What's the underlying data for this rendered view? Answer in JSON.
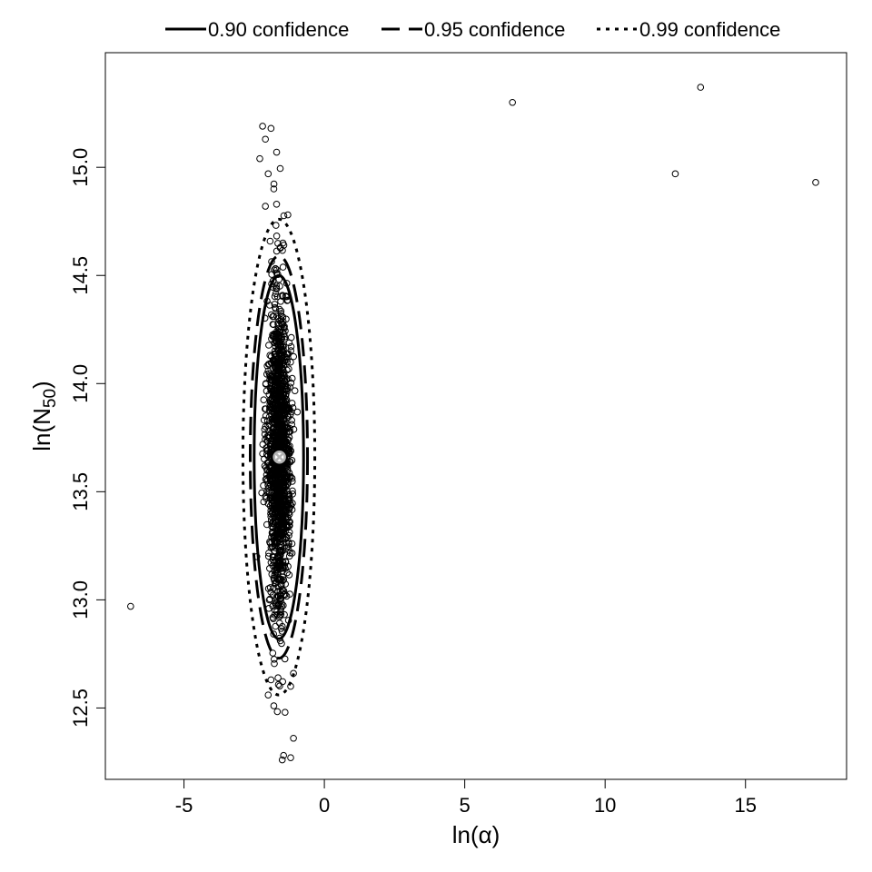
{
  "chart_data": {
    "type": "scatter",
    "xlabel": "ln(α)",
    "ylabel": {
      "prefix": "ln(N",
      "sub": "50",
      "suffix": ")"
    },
    "xlim": [
      -7.8,
      18.6
    ],
    "ylim": [
      12.17,
      15.53
    ],
    "xticks": [
      -5,
      0,
      5,
      10,
      15
    ],
    "xtick_labels": [
      "-5",
      "0",
      "5",
      "10",
      "15"
    ],
    "yticks": [
      12.5,
      13.0,
      13.5,
      14.0,
      14.5,
      15.0
    ],
    "ytick_labels": [
      "12.5",
      "13.0",
      "13.5",
      "14.0",
      "14.5",
      "15.0"
    ],
    "grid": false,
    "legend_position": "top",
    "legend": [
      {
        "label": "0.90 confidence",
        "style": "solid"
      },
      {
        "label": "0.95 confidence",
        "style": "dashed"
      },
      {
        "label": "0.99 confidence",
        "style": "dotted"
      }
    ],
    "estimate": {
      "x": -1.6,
      "y": 13.66,
      "color": "#b3b3b3"
    },
    "ellipses": [
      {
        "confidence": 0.9,
        "center": [
          -1.62,
          13.66
        ],
        "half_width_x": 0.88,
        "half_height_y": 0.84,
        "style": "solid"
      },
      {
        "confidence": 0.95,
        "center": [
          -1.62,
          13.66
        ],
        "half_width_x": 1.02,
        "half_height_y": 0.93,
        "style": "dashed"
      },
      {
        "confidence": 0.99,
        "center": [
          -1.62,
          13.66
        ],
        "half_width_x": 1.28,
        "half_height_y": 1.1,
        "style": "dotted"
      }
    ],
    "bootstrap_cloud": {
      "center_x": -1.62,
      "center_y": 13.66,
      "sd_x": 0.22,
      "sd_y": 0.36,
      "n": 1500
    },
    "points": [
      {
        "x": -6.9,
        "y": 12.97
      },
      {
        "x": 6.7,
        "y": 15.3
      },
      {
        "x": 12.5,
        "y": 14.97
      },
      {
        "x": 13.4,
        "y": 15.37
      },
      {
        "x": 17.5,
        "y": 14.93
      },
      {
        "x": -1.1,
        "y": 12.36
      },
      {
        "x": -1.2,
        "y": 12.27
      },
      {
        "x": -1.5,
        "y": 12.26
      },
      {
        "x": -1.4,
        "y": 12.48
      },
      {
        "x": -1.8,
        "y": 12.51
      },
      {
        "x": -2.2,
        "y": 15.19
      },
      {
        "x": -1.9,
        "y": 15.18
      },
      {
        "x": -2.1,
        "y": 15.13
      },
      {
        "x": -2.3,
        "y": 15.04
      },
      {
        "x": -1.7,
        "y": 15.07
      },
      {
        "x": -2.0,
        "y": 14.97
      },
      {
        "x": -1.8,
        "y": 14.9
      },
      {
        "x": -2.1,
        "y": 14.82
      },
      {
        "x": -1.3,
        "y": 14.78
      },
      {
        "x": -1.9,
        "y": 12.63
      },
      {
        "x": -1.2,
        "y": 12.6
      },
      {
        "x": -2.0,
        "y": 12.56
      },
      {
        "x": -1.1,
        "y": 12.66
      }
    ]
  }
}
